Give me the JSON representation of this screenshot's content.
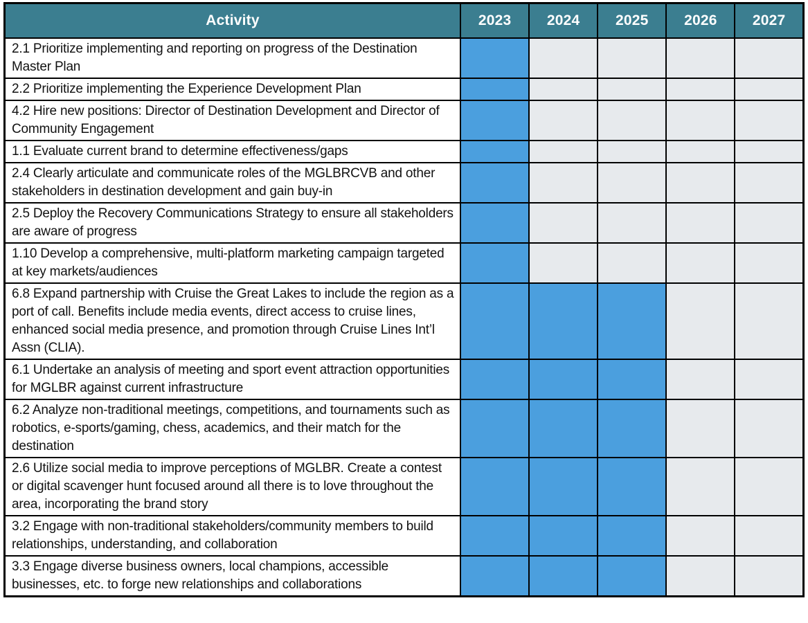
{
  "chart_data": {
    "type": "table",
    "columns": [
      "Activity",
      "2023",
      "2024",
      "2025",
      "2026",
      "2027"
    ],
    "years": [
      "2023",
      "2024",
      "2025",
      "2026",
      "2027"
    ],
    "rows": [
      {
        "activity": "2.1 Prioritize implementing and reporting on progress of the Destination Master Plan",
        "years_active": [
          "2023"
        ]
      },
      {
        "activity": "2.2 Prioritize implementing the Experience Development Plan",
        "years_active": [
          "2023"
        ]
      },
      {
        "activity": "4.2 Hire new positions: Director of Destination Development and Director of Community Engagement",
        "years_active": [
          "2023"
        ]
      },
      {
        "activity": "1.1 Evaluate current brand to determine effectiveness/gaps",
        "years_active": [
          "2023"
        ]
      },
      {
        "activity": "2.4 Clearly articulate and communicate roles of the MGLBRCVB and other stakeholders in destination development and gain buy-in",
        "years_active": [
          "2023"
        ]
      },
      {
        "activity": "2.5 Deploy the Recovery Communications Strategy to ensure all stakeholders are aware of progress",
        "years_active": [
          "2023"
        ]
      },
      {
        "activity": "1.10 Develop a comprehensive, multi-platform marketing campaign targeted at key markets/audiences",
        "years_active": [
          "2023"
        ]
      },
      {
        "activity": "6.8 Expand partnership with Cruise the Great Lakes to include the region as a port of call. Benefits include media events, direct access to cruise lines, enhanced social media presence, and promotion through Cruise Lines Int’l Assn (CLIA).",
        "years_active": [
          "2023",
          "2024",
          "2025"
        ]
      },
      {
        "activity": "6.1 Undertake an analysis of meeting and sport event attraction opportunities for MGLBR against current infrastructure",
        "years_active": [
          "2023",
          "2024",
          "2025"
        ]
      },
      {
        "activity": "6.2 Analyze non-traditional meetings, competitions, and tournaments such as robotics, e-sports/gaming, chess, academics, and their match for the destination",
        "years_active": [
          "2023",
          "2024",
          "2025"
        ]
      },
      {
        "activity": "2.6 Utilize social media to improve perceptions of MGLBR. Create a contest or digital scavenger hunt focused around all there is to love throughout the area, incorporating the brand story",
        "years_active": [
          "2023",
          "2024",
          "2025"
        ]
      },
      {
        "activity": "3.2 Engage with non-traditional stakeholders/community members to build relationships, understanding, and collaboration",
        "years_active": [
          "2023",
          "2024",
          "2025"
        ]
      },
      {
        "activity": "3.3 Engage diverse business owners, local champions, accessible businesses, etc. to forge new relationships and collaborations",
        "years_active": [
          "2023",
          "2024",
          "2025"
        ]
      }
    ]
  },
  "colors": {
    "header_bg": "#3B7E90",
    "header_text": "#FFFFFF",
    "active_cell": "#4B9FDE",
    "inactive_cell": "#E7EAED",
    "border": "#000000",
    "row_bg": "#FFFFFF",
    "body_text": "#121212"
  }
}
